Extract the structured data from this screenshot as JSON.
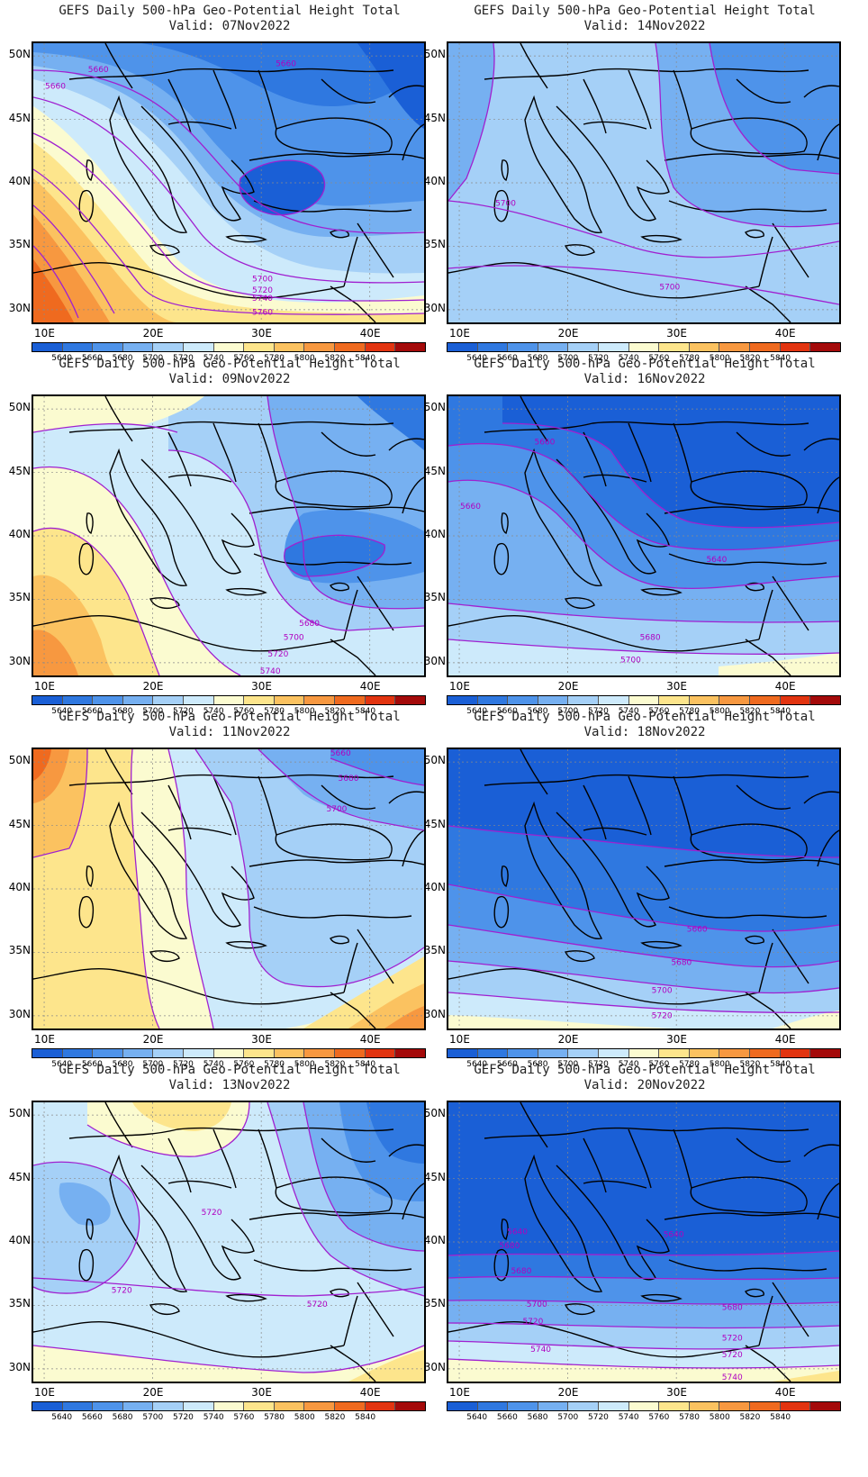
{
  "panels": [
    {
      "title": "GEFS Daily 500-hPa Geo-Potential Height Total",
      "valid": "Valid: 07Nov2022",
      "scheme": "cold_east_warm_west",
      "contour_labels": [
        "5660",
        "5660",
        "5660",
        "5700",
        "5720",
        "5740",
        "5760"
      ]
    },
    {
      "title": "GEFS Daily 500-hPa Geo-Potential Height Total",
      "valid": "Valid: 14Nov2022",
      "scheme": "light_blue",
      "contour_labels": [
        "5700",
        "5700"
      ]
    },
    {
      "title": "GEFS Daily 500-hPa Geo-Potential Height Total",
      "valid": "Valid: 09Nov2022",
      "scheme": "ridge_west",
      "contour_labels": [
        "5680",
        "5700",
        "5720",
        "5740"
      ]
    },
    {
      "title": "GEFS Daily 500-hPa Geo-Potential Height Total",
      "valid": "Valid: 16Nov2022",
      "scheme": "deep_trough",
      "contour_labels": [
        "5660",
        "5660",
        "5640",
        "5680",
        "5700"
      ]
    },
    {
      "title": "GEFS Daily 500-hPa Geo-Potential Height Total",
      "valid": "Valid: 11Nov2022",
      "scheme": "warm_west",
      "contour_labels": [
        "5660",
        "5680",
        "5700"
      ]
    },
    {
      "title": "GEFS Daily 500-hPa Geo-Potential Height Total",
      "valid": "Valid: 18Nov2022",
      "scheme": "zonal_cold",
      "contour_labels": [
        "5660",
        "5680",
        "5700",
        "5720"
      ]
    },
    {
      "title": "GEFS Daily 500-hPa Geo-Potential Height Total",
      "valid": "Valid: 13Nov2022",
      "scheme": "pale_mixed",
      "contour_labels": [
        "5720",
        "5720",
        "5720"
      ]
    },
    {
      "title": "GEFS Daily 500-hPa Geo-Potential Height Total",
      "valid": "Valid: 20Nov2022",
      "scheme": "zonal_cold_strong",
      "contour_labels": [
        "5640",
        "5640",
        "5680",
        "5680",
        "5700",
        "5720",
        "5740",
        "5680",
        "5720",
        "5720",
        "5740"
      ]
    }
  ],
  "lat_labels": [
    "50N",
    "45N",
    "40N",
    "35N",
    "30N"
  ],
  "lon_labels": [
    "10E",
    "20E",
    "30E",
    "40E"
  ],
  "colorbar": {
    "labels": [
      "5640",
      "5660",
      "5680",
      "5700",
      "5720",
      "5740",
      "5760",
      "5780",
      "5800",
      "5820",
      "5840"
    ],
    "colors": [
      "#1a5fd6",
      "#2f78e0",
      "#4e93ea",
      "#76b0f1",
      "#a5d0f7",
      "#cdeafb",
      "#fbfbd0",
      "#fde58c",
      "#fbc260",
      "#f79840",
      "#ef6a1f",
      "#e23410",
      "#a40a0a"
    ]
  },
  "colors": {
    "contour": "#a020d0",
    "border": "#000000"
  }
}
